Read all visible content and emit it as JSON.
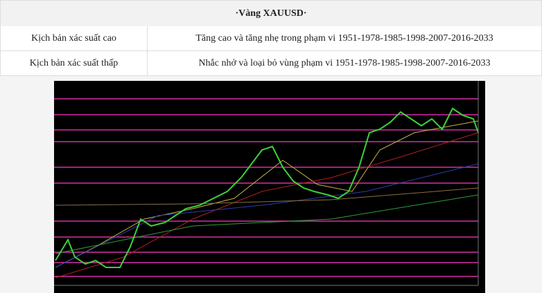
{
  "header": {
    "title": "·Vàng XAUUSD·"
  },
  "table": {
    "rows": [
      [
        "Kịch bản xác suất cao",
        "Tăng cao và tăng nhẹ trong phạm vi 1951-1978-1985-1998-2007-2016-2033"
      ],
      [
        "Kịch bản xác suất thấp",
        "Nhắc nhở và loại bỏ vùng phạm vi 1951-1978-1985-1998-2007-2016-2033"
      ]
    ]
  }
}
